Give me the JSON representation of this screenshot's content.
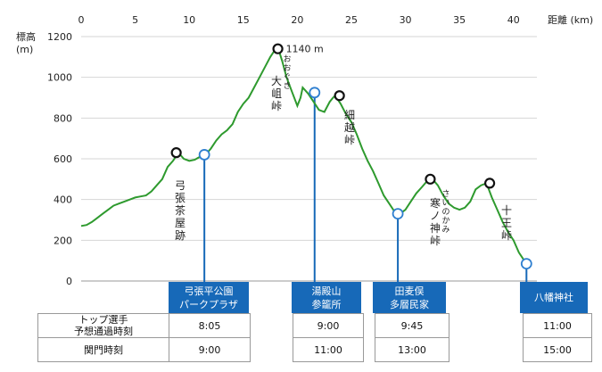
{
  "chart_data": {
    "type": "line",
    "ylabel": "標高\n(m)",
    "xlabel": "距離 (km)",
    "xlim": [
      0,
      42
    ],
    "ylim": [
      0,
      1200
    ],
    "xticks": [
      0,
      5,
      10,
      15,
      20,
      25,
      30,
      35,
      40
    ],
    "yticks": [
      0,
      200,
      400,
      600,
      800,
      1000,
      1200
    ],
    "grid": true,
    "line_color": "#2e9a2e",
    "series": [
      {
        "x": [
          0,
          0.5,
          1,
          1.5,
          2,
          2.5,
          3,
          3.5,
          4,
          4.5,
          5,
          5.5,
          6,
          6.5,
          7,
          7.5,
          8,
          8.5,
          9,
          9.5,
          10,
          10.5,
          11,
          11.5,
          12,
          12.5,
          13,
          13.5,
          14,
          14.5,
          15,
          15.5,
          16,
          16.5,
          17,
          17.5,
          18,
          18.3,
          18.6,
          19,
          19.5,
          20,
          20.3,
          20.5,
          21,
          21.5,
          22,
          22.5,
          23,
          23.3,
          23.5,
          24,
          24.5,
          25,
          25.5,
          26,
          26.5,
          27,
          27.5,
          28,
          28.5,
          29,
          29.5,
          30,
          30.5,
          31,
          31.5,
          32,
          32.5,
          33,
          33.5,
          34,
          34.5,
          35,
          35.5,
          36,
          36.5,
          37,
          37.5,
          38,
          38.5,
          39,
          39.5,
          40,
          40.5,
          41,
          41.2
        ],
        "y": [
          270,
          275,
          290,
          310,
          330,
          350,
          370,
          380,
          390,
          400,
          410,
          415,
          420,
          440,
          470,
          500,
          560,
          590,
          630,
          600,
          590,
          595,
          610,
          620,
          650,
          690,
          720,
          740,
          770,
          830,
          870,
          900,
          950,
          1000,
          1050,
          1100,
          1140,
          1130,
          1080,
          1000,
          930,
          860,
          900,
          950,
          920,
          880,
          840,
          830,
          880,
          900,
          910,
          870,
          820,
          780,
          720,
          650,
          590,
          540,
          480,
          420,
          380,
          340,
          330,
          350,
          390,
          430,
          460,
          490,
          500,
          470,
          420,
          380,
          360,
          350,
          360,
          390,
          450,
          470,
          480,
          410,
          350,
          290,
          240,
          200,
          140,
          100,
          85
        ]
      }
    ],
    "markers_black": [
      {
        "km": 8.8,
        "elev": 630
      },
      {
        "km": 18.2,
        "elev": 1140
      },
      {
        "km": 23.9,
        "elev": 910
      },
      {
        "km": 32.3,
        "elev": 500
      },
      {
        "km": 37.8,
        "elev": 480
      }
    ],
    "markers_blue": [
      {
        "km": 11.4,
        "elev": 620
      },
      {
        "km": 21.6,
        "elev": 925
      },
      {
        "km": 29.3,
        "elev": 330
      },
      {
        "km": 41.2,
        "elev": 85
      }
    ],
    "peak_label": "1140 m",
    "annotations": [
      {
        "text": "弓\n張\n茶\n屋\n跡"
      },
      {
        "text": "大\n岨\n峠"
      },
      {
        "text": "お\nお\nぐ\nき"
      },
      {
        "text": "細\n越\n峠"
      },
      {
        "text": "寒\nノ\n神\n峠"
      },
      {
        "text": "さ\nい\nの\nか\nみ"
      },
      {
        "text": "十\n王\n峠"
      }
    ]
  },
  "checkpoints": [
    {
      "name": "弓張平公園\nパークプラザ",
      "top_time": "8:05",
      "close_time": "9:00"
    },
    {
      "name": "湯殿山\n参籠所",
      "top_time": "9:00",
      "close_time": "11:00"
    },
    {
      "name": "田麦俣\n多層民家",
      "top_time": "9:45",
      "close_time": "13:00"
    },
    {
      "name": "八幡神社",
      "top_time": "11:00",
      "close_time": "15:00"
    }
  ],
  "table_labels": {
    "row1": "トップ選手\n予想通過時刻",
    "row2": "関門時刻"
  }
}
